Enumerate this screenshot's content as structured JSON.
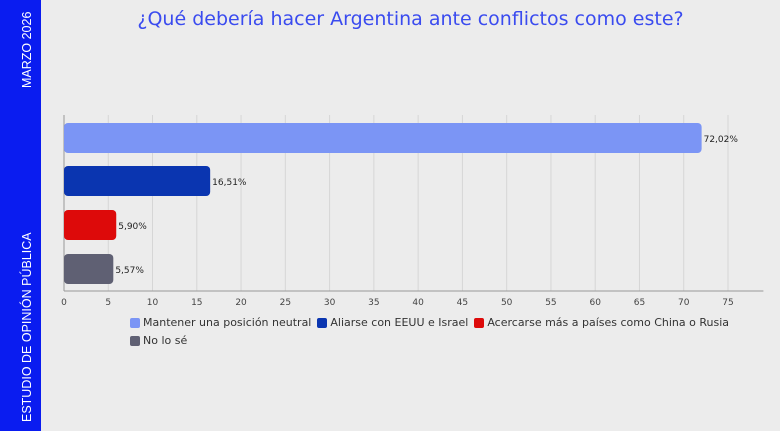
{
  "sidebar": {
    "date": "MARZO 2026",
    "label": "ESTUDIO DE OPINIÓN PÚBLICA",
    "color": "#0a1cf0"
  },
  "chart_data": {
    "type": "bar",
    "orientation": "horizontal",
    "title": "¿Qué debería hacer Argentina ante conflictos como este?",
    "categories": [
      "Mantener una posición neutral",
      "Aliarse con EEUU e Israel",
      "Acercarse más a países como China o Rusia",
      "No lo sé"
    ],
    "values": [
      72.02,
      16.51,
      5.9,
      5.57
    ],
    "data_labels": [
      "72,02%",
      "16,51%",
      "5,90%",
      "5,57%"
    ],
    "colors": [
      "#7b95f5",
      "#0a35b0",
      "#dd0a0a",
      "#5f6073"
    ],
    "xlim": [
      0,
      79
    ],
    "xticks": [
      0,
      5,
      10,
      15,
      20,
      25,
      30,
      35,
      40,
      45,
      50,
      55,
      60,
      65,
      70,
      75
    ],
    "grid": true,
    "legend": "bottom"
  }
}
